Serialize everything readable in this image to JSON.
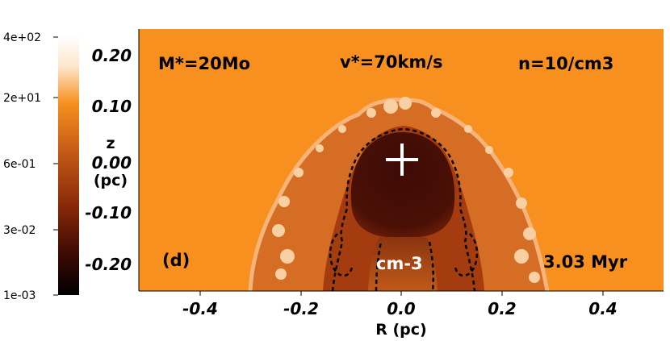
{
  "colorbar": {
    "ticks": [
      "4e+02",
      "2e+01",
      "6e-01",
      "3e-02",
      "1e-03"
    ],
    "unit": "cm-3"
  },
  "annotations": {
    "mass": "M*=20Mo",
    "velocity": "v*=70km/s",
    "density": "n=10/cm3",
    "panel": "(d)",
    "time": "3.03 Myr"
  },
  "axes": {
    "xlabel": "R (pc)",
    "ylabel_top": "z",
    "ylabel_bottom": "(pc)",
    "xticks": [
      "-0.4",
      "-0.2",
      "0.0",
      "0.2",
      "0.4"
    ],
    "yticks": [
      "0.20",
      "0.10",
      "0.00",
      "-0.10",
      "-0.20"
    ]
  },
  "colors": {
    "ambient": "#f7901f",
    "cavity": "#3a0a04",
    "shell": "#b94a12",
    "shell_light": "#f6c79b"
  }
}
